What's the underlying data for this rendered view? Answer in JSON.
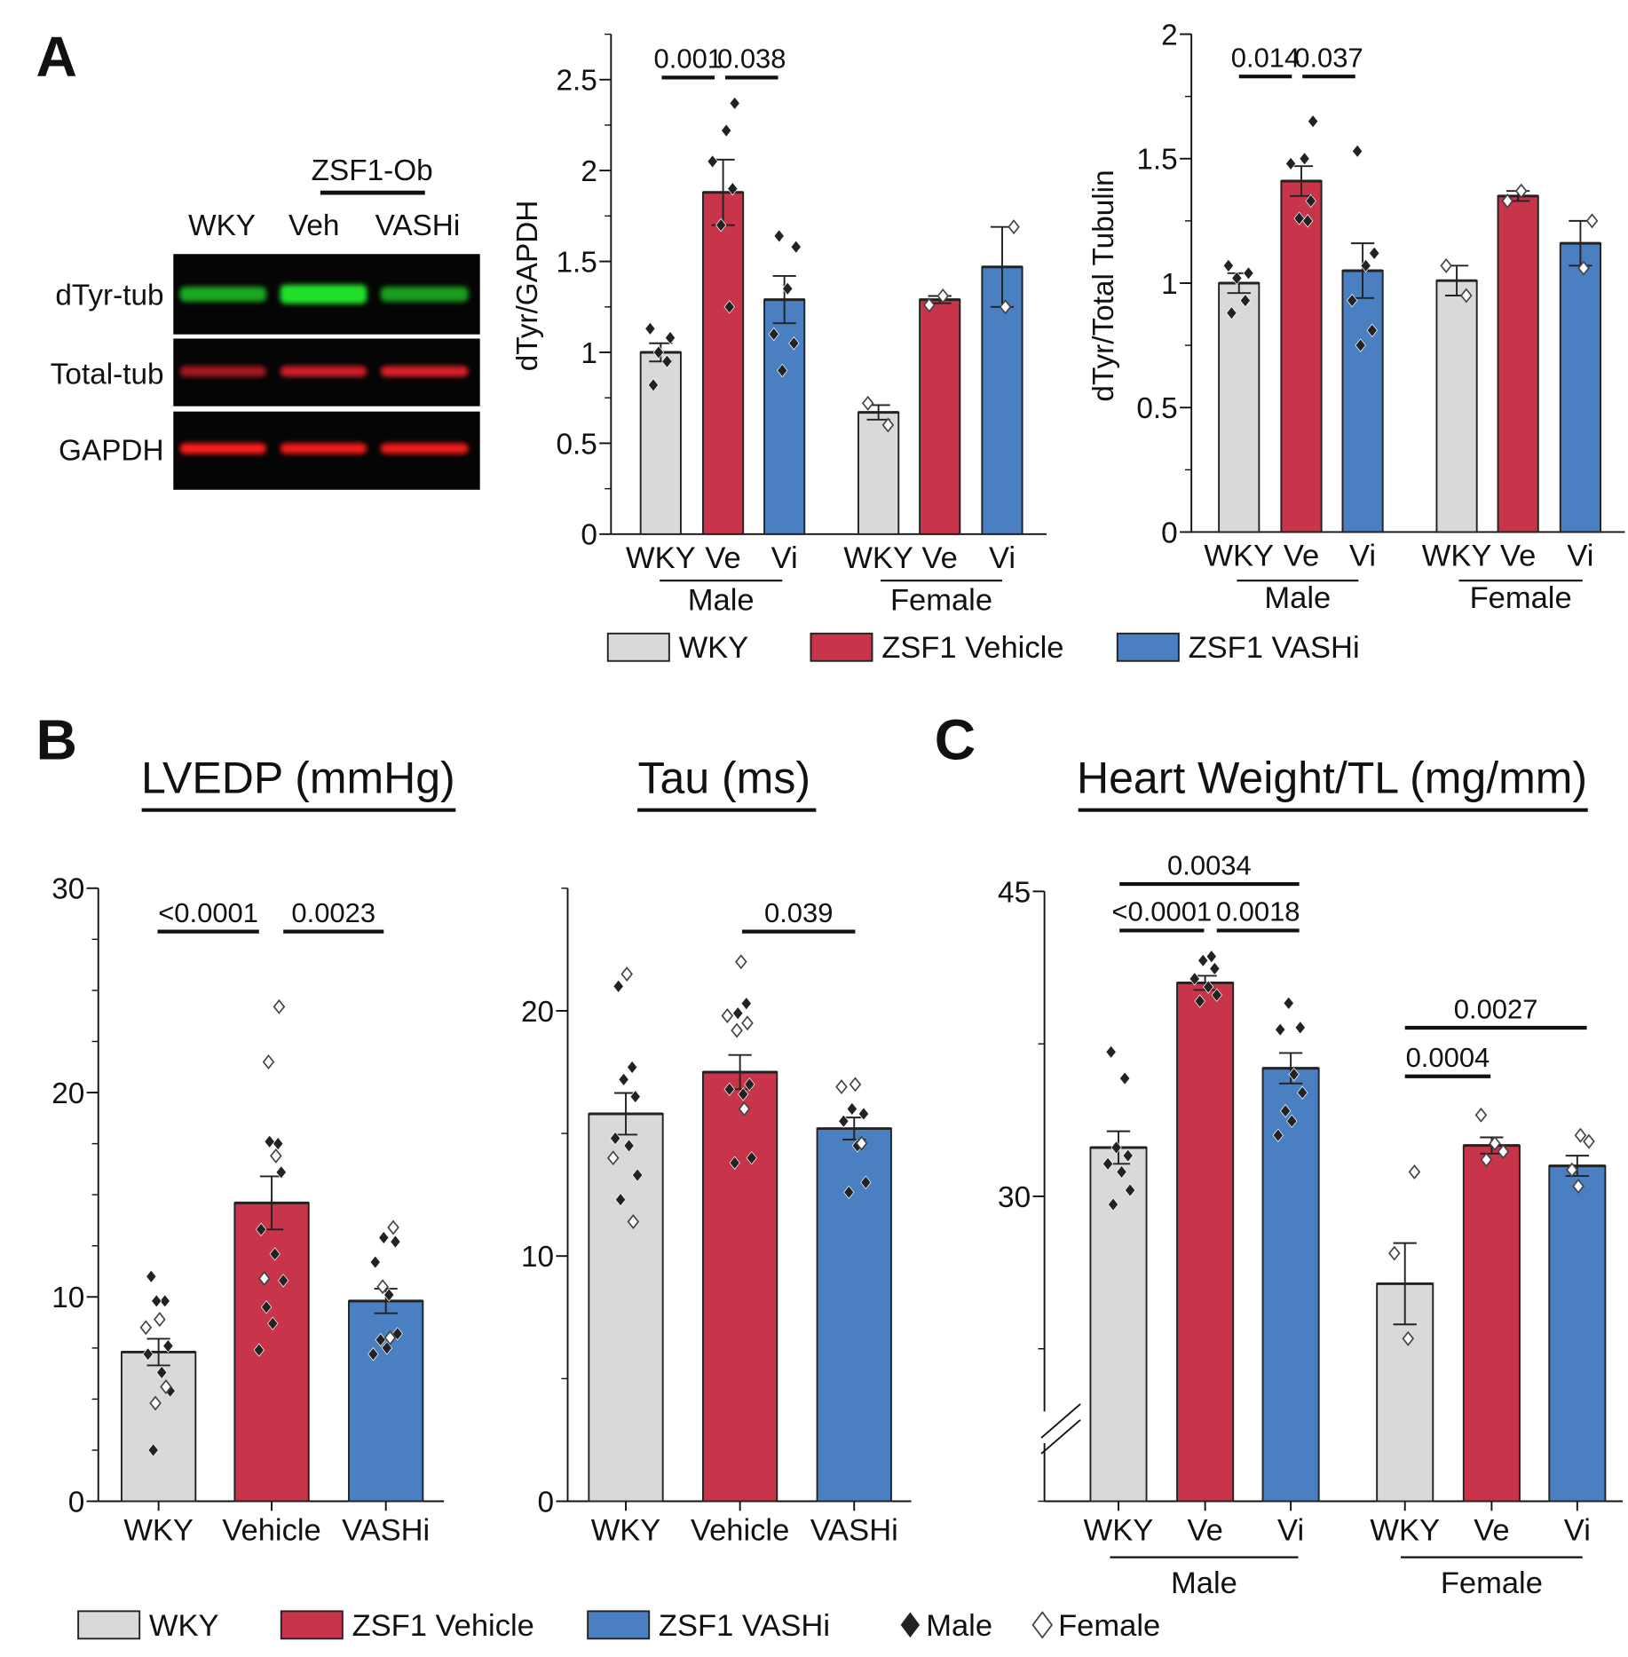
{
  "panel_labels": [
    "A",
    "B",
    "C"
  ],
  "colors": {
    "WKY": "#d9d9d9",
    "ZSF1 Vehicle": "#c8344a",
    "ZSF1 VASHi": "#4a7fc1",
    "male_marker": "#222222",
    "female_marker": "#ffffff"
  },
  "blot": {
    "group_label": "ZSF1-Ob",
    "lanes": [
      "WKY",
      "Veh",
      "VASHi"
    ],
    "rows": [
      "dTyr-tub",
      "Total-tub",
      "GAPDH"
    ],
    "band_colors": [
      "#22e02a",
      "#e8202a",
      "#ff1a1a"
    ]
  },
  "legend_a": [
    "WKY",
    "ZSF1 Vehicle",
    "ZSF1 VASHi"
  ],
  "legend_b": {
    "fills": [
      "WKY",
      "ZSF1 Vehicle",
      "ZSF1 VASHi"
    ],
    "male": "Male",
    "female": "Female"
  },
  "chart_data": [
    {
      "type": "bar",
      "title": "",
      "ylabel": "dTyr/GAPDH",
      "ylim": [
        0,
        2.75
      ],
      "yticks": [
        0,
        0.5,
        1,
        1.5,
        2,
        2.5
      ],
      "ytick_labels": [
        "0",
        "0.5",
        "1",
        "1.5",
        "2",
        "2.5"
      ],
      "groups": [
        "Male",
        "Female"
      ],
      "bars": [
        {
          "category": "WKY",
          "group": "Male",
          "fill": "WKY",
          "value": 1.0,
          "sem": 0.05,
          "male": [
            0.82,
            0.95,
            1.0,
            1.08,
            1.13
          ],
          "female": []
        },
        {
          "category": "Ve",
          "group": "Male",
          "fill": "ZSF1 Vehicle",
          "value": 1.88,
          "sem": 0.18,
          "male": [
            1.25,
            1.7,
            1.9,
            2.05,
            2.22,
            2.37
          ],
          "female": []
        },
        {
          "category": "Vi",
          "group": "Male",
          "fill": "ZSF1 VASHi",
          "value": 1.29,
          "sem": 0.13,
          "male": [
            0.9,
            1.05,
            1.1,
            1.35,
            1.58,
            1.64
          ],
          "female": []
        },
        {
          "category": "WKY",
          "group": "Female",
          "fill": "WKY",
          "value": 0.67,
          "sem": 0.04,
          "male": [],
          "female": [
            0.6,
            0.72
          ]
        },
        {
          "category": "Ve",
          "group": "Female",
          "fill": "ZSF1 Vehicle",
          "value": 1.29,
          "sem": 0.02,
          "male": [],
          "female": [
            1.26,
            1.31
          ]
        },
        {
          "category": "Vi",
          "group": "Female",
          "fill": "ZSF1 VASHi",
          "value": 1.47,
          "sem": 0.22,
          "male": [],
          "female": [
            1.25,
            1.69
          ]
        }
      ],
      "significance": [
        {
          "from": "Male WKY",
          "to": "Male Ve",
          "label": "0.001"
        },
        {
          "from": "Male Ve",
          "to": "Male Vi",
          "label": "0.038"
        }
      ]
    },
    {
      "type": "bar",
      "title": "",
      "ylabel": "dTyr/Total Tubulin",
      "ylim": [
        0,
        2
      ],
      "yticks": [
        0,
        0.5,
        1,
        1.5,
        2
      ],
      "ytick_labels": [
        "0",
        "0.5",
        "1",
        "1.5",
        "2"
      ],
      "groups": [
        "Male",
        "Female"
      ],
      "bars": [
        {
          "category": "WKY",
          "group": "Male",
          "fill": "WKY",
          "value": 1.0,
          "sem": 0.04,
          "male": [
            0.88,
            0.93,
            1.02,
            1.04,
            1.07
          ],
          "female": []
        },
        {
          "category": "Ve",
          "group": "Male",
          "fill": "ZSF1 Vehicle",
          "value": 1.41,
          "sem": 0.06,
          "male": [
            1.25,
            1.26,
            1.33,
            1.48,
            1.5,
            1.65
          ],
          "female": []
        },
        {
          "category": "Vi",
          "group": "Male",
          "fill": "ZSF1 VASHi",
          "value": 1.05,
          "sem": 0.11,
          "male": [
            0.75,
            0.81,
            0.93,
            1.07,
            1.12,
            1.53
          ],
          "female": []
        },
        {
          "category": "WKY",
          "group": "Female",
          "fill": "WKY",
          "value": 1.01,
          "sem": 0.06,
          "male": [],
          "female": [
            0.95,
            1.07
          ]
        },
        {
          "category": "Ve",
          "group": "Female",
          "fill": "ZSF1 Vehicle",
          "value": 1.35,
          "sem": 0.02,
          "male": [],
          "female": [
            1.33,
            1.37
          ]
        },
        {
          "category": "Vi",
          "group": "Female",
          "fill": "ZSF1 VASHi",
          "value": 1.16,
          "sem": 0.09,
          "male": [],
          "female": [
            1.06,
            1.25
          ]
        }
      ],
      "significance": [
        {
          "from": "Male WKY",
          "to": "Male Ve",
          "label": "0.014"
        },
        {
          "from": "Male Ve",
          "to": "Male Vi",
          "label": "0.037"
        }
      ]
    },
    {
      "type": "bar",
      "title": "LVEDP (mmHg)",
      "ylabel": "",
      "ylim": [
        0,
        30
      ],
      "yticks": [
        0,
        10,
        20,
        30
      ],
      "ytick_labels": [
        "0",
        "10",
        "20",
        "30"
      ],
      "groups": [],
      "bars": [
        {
          "category": "WKY",
          "group": "",
          "fill": "WKY",
          "value": 7.3,
          "sem": 0.65,
          "male": [
            11,
            9.8,
            9.8,
            7.6,
            7.2,
            6.3,
            5.4,
            2.5
          ],
          "female": [
            8.9,
            8.5,
            5.6,
            4.8
          ]
        },
        {
          "category": "Vehicle",
          "group": "",
          "fill": "ZSF1 Vehicle",
          "value": 14.6,
          "sem": 1.3,
          "male": [
            17.5,
            17.6,
            16.1,
            13.3,
            12.1,
            10.8,
            9.5,
            8.7,
            7.4
          ],
          "female": [
            24.2,
            21.5,
            16.9,
            10.9
          ]
        },
        {
          "category": "VASHi",
          "group": "",
          "fill": "ZSF1 VASHi",
          "value": 9.8,
          "sem": 0.6,
          "male": [
            12.9,
            12.7,
            11.7,
            10.1,
            8.2,
            7.9,
            7.5,
            7.2
          ],
          "female": [
            13.4,
            10.5,
            8.0
          ]
        }
      ],
      "significance": [
        {
          "from": "WKY",
          "to": "Vehicle",
          "label": "<0.0001"
        },
        {
          "from": "Vehicle",
          "to": "VASHi",
          "label": "0.0023"
        }
      ]
    },
    {
      "type": "bar",
      "title": "Tau (ms)",
      "ylabel": "",
      "ylim": [
        0,
        25
      ],
      "yticks": [
        0,
        10,
        20
      ],
      "ytick_labels": [
        "0",
        "10",
        "20"
      ],
      "groups": [],
      "bars": [
        {
          "category": "WKY",
          "group": "",
          "fill": "WKY",
          "value": 15.8,
          "sem": 0.85,
          "male": [
            21,
            17.7,
            17.2,
            16.5,
            14.8,
            14.5,
            13.3,
            12.3
          ],
          "female": [
            21.5,
            14.0,
            11.4
          ]
        },
        {
          "category": "Vehicle",
          "group": "",
          "fill": "ZSF1 Vehicle",
          "value": 17.5,
          "sem": 0.7,
          "male": [
            20.3,
            19.9,
            17,
            16.8,
            16.6,
            14,
            13.8
          ],
          "female": [
            22,
            19.8,
            19.5,
            19.2,
            16
          ]
        },
        {
          "category": "VASHi",
          "group": "",
          "fill": "ZSF1 VASHi",
          "value": 15.2,
          "sem": 0.45,
          "male": [
            16,
            15.8,
            15.5,
            14.5,
            13,
            12.6
          ],
          "female": [
            17,
            16.9,
            14.6
          ]
        }
      ],
      "significance": [
        {
          "from": "Vehicle",
          "to": "VASHi",
          "label": "0.039"
        }
      ]
    },
    {
      "type": "bar",
      "title": "Heart Weight/TL (mg/mm)",
      "ylabel": "",
      "ylim": [
        15,
        45
      ],
      "axis_break": true,
      "yticks": [
        30,
        45
      ],
      "ytick_labels": [
        "30",
        "45"
      ],
      "groups": [
        "Male",
        "Female"
      ],
      "bars": [
        {
          "category": "WKY",
          "group": "Male",
          "fill": "WKY",
          "value": 32.4,
          "sem": 0.8,
          "male": [
            37.1,
            35.8,
            32.4,
            32,
            31.6,
            31.2,
            30.3,
            29.6
          ],
          "female": []
        },
        {
          "category": "Ve",
          "group": "Male",
          "fill": "ZSF1 Vehicle",
          "value": 40.5,
          "sem": 0.35,
          "male": [
            41.8,
            41.6,
            41.2,
            40.7,
            40.3,
            39.9,
            39.6
          ],
          "female": []
        },
        {
          "category": "Vi",
          "group": "Male",
          "fill": "ZSF1 VASHi",
          "value": 36.3,
          "sem": 0.75,
          "male": [
            39.5,
            38.3,
            38.2,
            36,
            35.1,
            34.2,
            33.7,
            33
          ],
          "female": []
        },
        {
          "category": "WKY",
          "group": "Female",
          "fill": "WKY",
          "value": 25.7,
          "sem": 2.0,
          "male": [],
          "female": [
            31.2,
            27.2,
            23
          ]
        },
        {
          "category": "Ve",
          "group": "Female",
          "fill": "ZSF1 Vehicle",
          "value": 32.5,
          "sem": 0.4,
          "male": [],
          "female": [
            34,
            32.6,
            32.2,
            31.8
          ]
        },
        {
          "category": "Vi",
          "group": "Female",
          "fill": "ZSF1 VASHi",
          "value": 31.5,
          "sem": 0.5,
          "male": [],
          "female": [
            33,
            32.7,
            31.3,
            30.5
          ]
        }
      ],
      "significance": [
        {
          "from": "Male WKY",
          "to": "Male Ve",
          "label": "<0.0001"
        },
        {
          "from": "Male Ve",
          "to": "Male Vi",
          "label": "0.0018"
        },
        {
          "from": "Male WKY",
          "to": "Male Vi",
          "label": "0.0034"
        },
        {
          "from": "Female WKY",
          "to": "Female Ve",
          "label": "0.0004"
        },
        {
          "from": "Female WKY",
          "to": "Female Vi",
          "label": "0.0027"
        }
      ]
    }
  ]
}
